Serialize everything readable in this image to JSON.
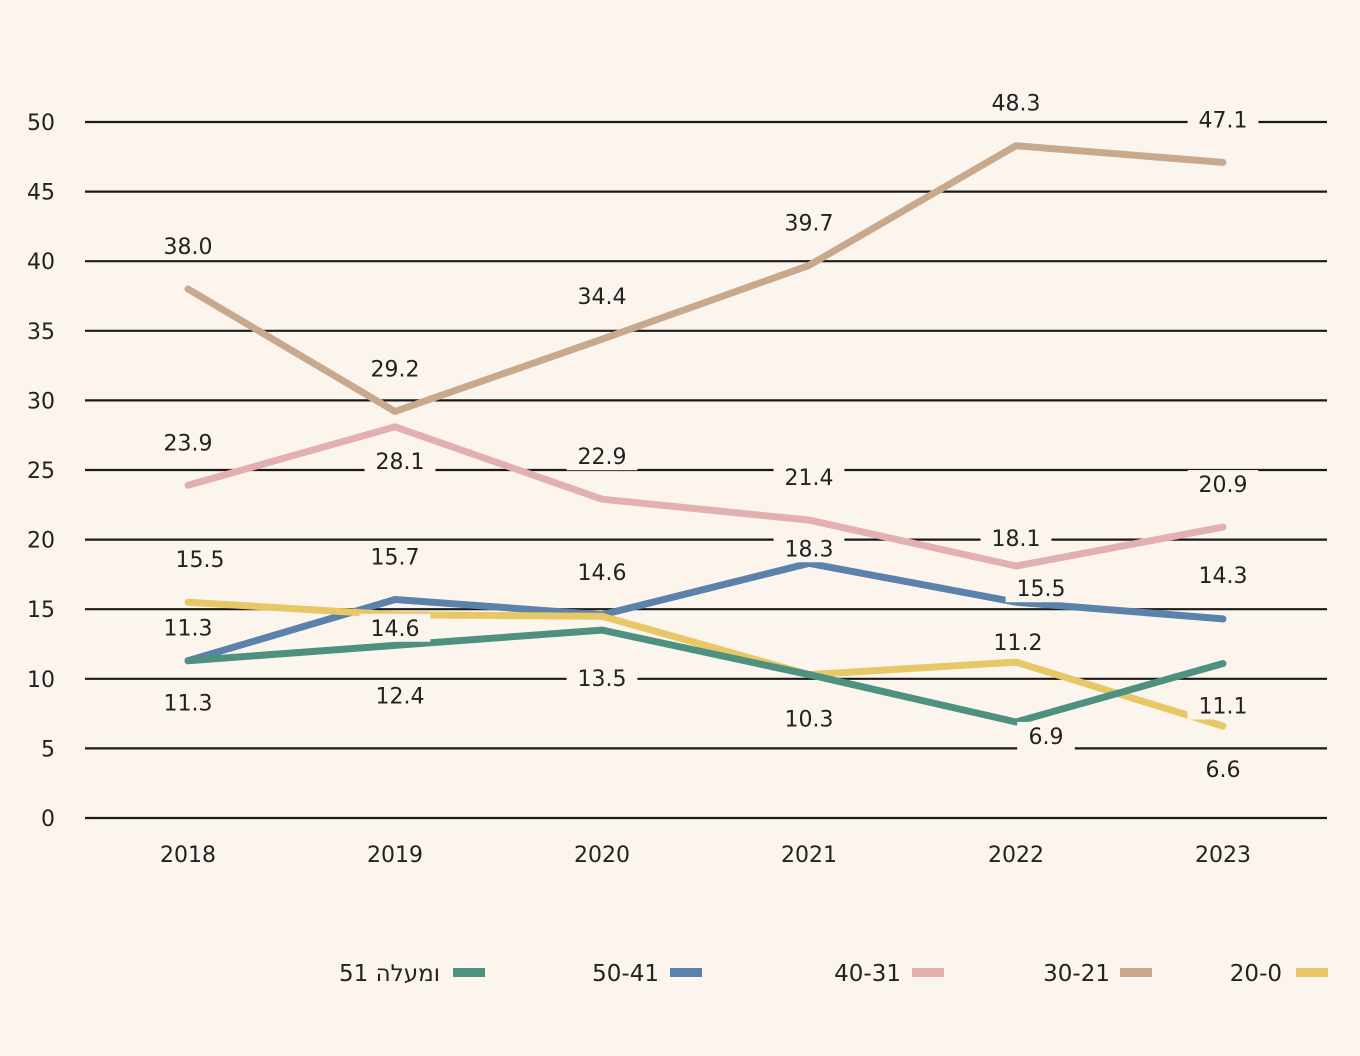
{
  "chart_data": {
    "type": "line",
    "title": "",
    "xlabel": "",
    "ylabel": "",
    "x": [
      "2018",
      "2019",
      "2020",
      "2021",
      "2022",
      "2023"
    ],
    "ylim": [
      0,
      50
    ],
    "yticks": [
      "0",
      "5",
      "10",
      "15",
      "20",
      "25",
      "30",
      "35",
      "40",
      "45",
      "50"
    ],
    "grid": true,
    "legend_position": "bottom",
    "series": [
      {
        "name": "30-21",
        "color": "#c8a98e",
        "values": [
          38.0,
          29.2,
          34.4,
          39.7,
          48.3,
          47.1
        ],
        "labels": [
          "38.0",
          "29.2",
          "34.4",
          "39.7",
          "48.3",
          "47.1"
        ]
      },
      {
        "name": "40-31",
        "color": "#e3b0b2",
        "values": [
          23.9,
          28.1,
          22.9,
          21.4,
          18.1,
          20.9
        ],
        "labels": [
          "23.9",
          "28.1",
          "22.9",
          "21.4",
          "18.1",
          "20.9"
        ]
      },
      {
        "name": "50-41",
        "color": "#5a82aa",
        "values": [
          11.3,
          15.7,
          14.6,
          18.3,
          15.5,
          14.3
        ],
        "labels": [
          "11.3",
          "15.7",
          "14.6",
          "18.3",
          "15.5",
          "14.3"
        ]
      },
      {
        "name": "20-0",
        "color": "#e8c766",
        "values": [
          15.5,
          14.6,
          14.5,
          10.3,
          11.2,
          6.6
        ],
        "labels": [
          "15.5",
          "14.6",
          "",
          "",
          "11.2",
          "6.6"
        ]
      },
      {
        "name": "51 ומעלה",
        "color": "#4f9180",
        "values": [
          11.3,
          12.4,
          13.5,
          10.3,
          6.9,
          11.1
        ],
        "labels": [
          "11.3",
          "12.4",
          "13.5",
          "10.3",
          "6.9",
          "11.1"
        ]
      }
    ],
    "legend": [
      {
        "label": "51 ומעלה",
        "color": "#4f9180"
      },
      {
        "label": "50-41",
        "color": "#5a82aa"
      },
      {
        "label": "40-31",
        "color": "#e3b0b2"
      },
      {
        "label": "30-21",
        "color": "#c8a98e"
      },
      {
        "label": "20-0",
        "color": "#e8c766"
      }
    ]
  }
}
